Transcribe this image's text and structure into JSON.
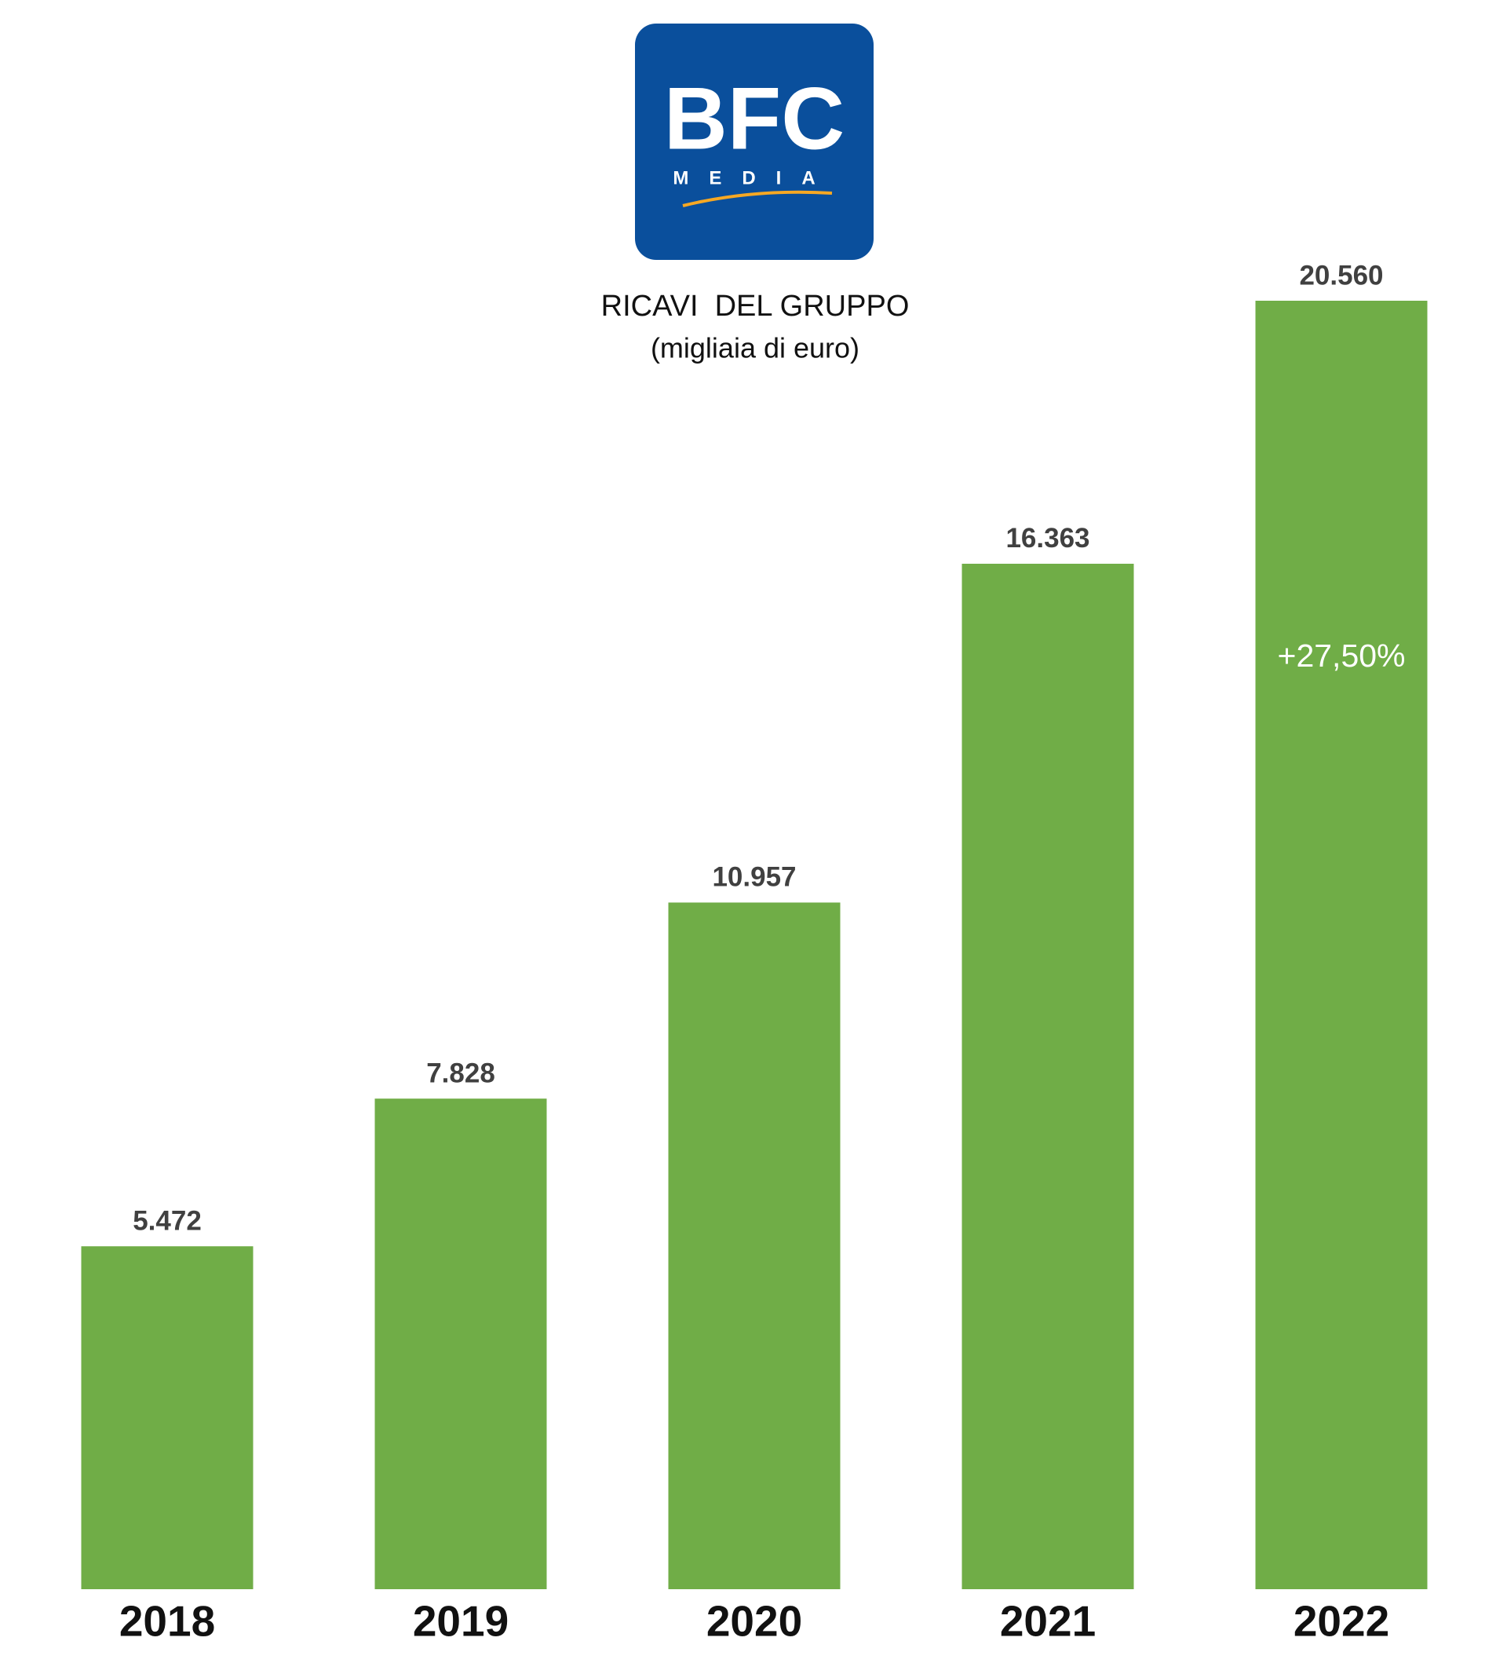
{
  "logo": {
    "text": "BFC",
    "subtext": "MEDIA"
  },
  "chart_data": {
    "type": "bar",
    "title": "RICAVI  DEL GRUPPO",
    "subtitle": "(migliaia di euro)",
    "categories": [
      "2018",
      "2019",
      "2020",
      "2021",
      "2022"
    ],
    "values": [
      5472,
      7828,
      10957,
      16363,
      20560
    ],
    "value_labels": [
      "5.472",
      "7.828",
      "10.957",
      "16.363",
      "20.560"
    ],
    "color": "#70ad47",
    "annotation": "+27,50%"
  }
}
